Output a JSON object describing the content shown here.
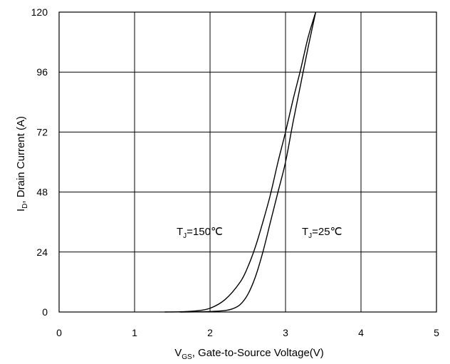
{
  "chart_data": {
    "type": "line",
    "xlabel": {
      "main": "V",
      "sub": "GS",
      "rest": ", Gate-to-Source  Voltage(V)"
    },
    "ylabel": {
      "main": "I",
      "sub": "D",
      "rest": ", Drain Current (A)"
    },
    "xlim": [
      0,
      5
    ],
    "ylim": [
      0,
      120
    ],
    "x_ticks": [
      0,
      1,
      2,
      3,
      4,
      5
    ],
    "y_ticks": [
      0,
      24,
      48,
      72,
      96,
      120
    ],
    "grid": true,
    "series": [
      {
        "name": "TJ=150℃",
        "label_main": "T",
        "label_sub": "J",
        "label_rest": "=150℃",
        "x": [
          1.4,
          1.6,
          1.8,
          2.0,
          2.2,
          2.4,
          2.5,
          2.6,
          2.7,
          2.8,
          2.9,
          3.0,
          3.1,
          3.2,
          3.3,
          3.4
        ],
        "y": [
          0,
          0.1,
          0.4,
          1.5,
          5,
          12,
          18,
          26,
          36,
          47,
          60,
          72,
          85,
          97,
          110,
          120
        ]
      },
      {
        "name": "TJ=25℃",
        "label_main": "T",
        "label_sub": "J",
        "label_rest": "=25℃",
        "x": [
          1.6,
          1.8,
          2.0,
          2.2,
          2.3,
          2.4,
          2.5,
          2.6,
          2.7,
          2.8,
          2.9,
          3.0,
          3.1,
          3.2,
          3.3,
          3.4
        ],
        "y": [
          0,
          0.05,
          0.2,
          0.6,
          1.3,
          3,
          7,
          14,
          24,
          36,
          48,
          60,
          76,
          91,
          106,
          120
        ]
      }
    ]
  }
}
